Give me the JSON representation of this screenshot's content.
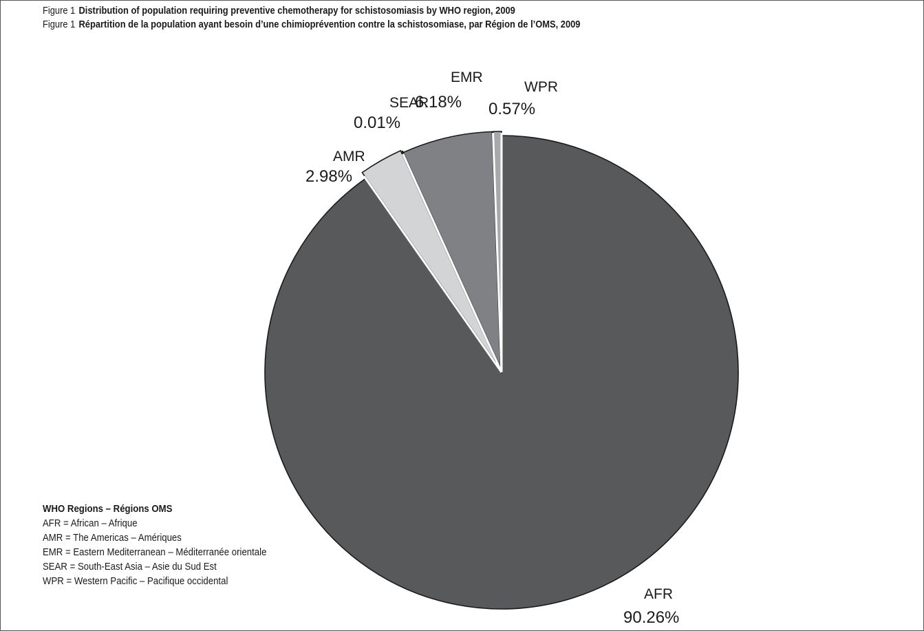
{
  "figure": {
    "label_en": "Figure 1",
    "title_en": "Distribution of population requiring preventive chemotherapy for schistosomiasis by WHO region, 2009",
    "label_fr": "Figure 1",
    "title_fr": "Répartition de la population ayant besoin d’une chimioprévention contre la schistosomiase, par Région de l’OMS, 2009"
  },
  "legend": {
    "title": "WHO Regions – Régions OMS",
    "items": [
      "AFR = African – Afrique",
      "AMR = The Americas – Amériques",
      "EMR = Eastern Mediterranean – Méditerranée orientale",
      "SEAR = South-East Asia – Asie du Sud Est",
      "WPR = Western Pacific – Pacifique occidental"
    ]
  },
  "chart_data": {
    "type": "pie",
    "title": "Distribution of population requiring preventive chemotherapy for schistosomiasis by WHO region, 2009",
    "start_angle_deg": 0,
    "direction": "clockwise",
    "slices": [
      {
        "label": "AFR",
        "value_text": "90.26%",
        "value": 90.26,
        "color": "#58595b"
      },
      {
        "label": "AMR",
        "value_text": "2.98%",
        "value": 2.98,
        "color": "#d3d4d6"
      },
      {
        "label": "SEAR",
        "value_text": "0.01%",
        "value": 0.01,
        "color": "#ffffff"
      },
      {
        "label": "EMR",
        "value_text": "6.18%",
        "value": 6.18,
        "color": "#808184"
      },
      {
        "label": "WPR",
        "value_text": "0.57%",
        "value": 0.57,
        "color": "#a8a9ab"
      }
    ]
  }
}
